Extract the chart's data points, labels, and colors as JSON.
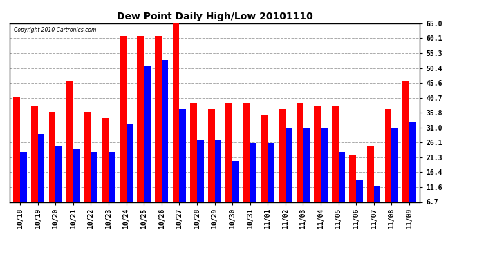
{
  "title": "Dew Point Daily High/Low 20101110",
  "copyright": "Copyright 2010 Cartronics.com",
  "dates": [
    "10/18",
    "10/19",
    "10/20",
    "10/21",
    "10/22",
    "10/23",
    "10/24",
    "10/25",
    "10/26",
    "10/27",
    "10/28",
    "10/29",
    "10/30",
    "10/31",
    "11/01",
    "11/02",
    "11/03",
    "11/04",
    "11/05",
    "11/06",
    "11/07",
    "11/08",
    "11/09"
  ],
  "highs": [
    41,
    38,
    36,
    46,
    36,
    34,
    61,
    61,
    61,
    65,
    39,
    37,
    39,
    39,
    35,
    37,
    39,
    38,
    38,
    22,
    25,
    37,
    46
  ],
  "lows": [
    23,
    29,
    25,
    24,
    23,
    23,
    32,
    51,
    53,
    37,
    27,
    27,
    20,
    26,
    26,
    31,
    31,
    31,
    23,
    14,
    12,
    31,
    33
  ],
  "high_color": "#ff0000",
  "low_color": "#0000ff",
  "bg_color": "#ffffff",
  "yticks": [
    6.7,
    11.6,
    16.4,
    21.3,
    26.1,
    31.0,
    35.8,
    40.7,
    45.6,
    50.4,
    55.3,
    60.1,
    65.0
  ],
  "ymin": 6.7,
  "ymax": 65.0,
  "bar_width": 0.38,
  "title_fontsize": 10,
  "tick_fontsize": 7
}
